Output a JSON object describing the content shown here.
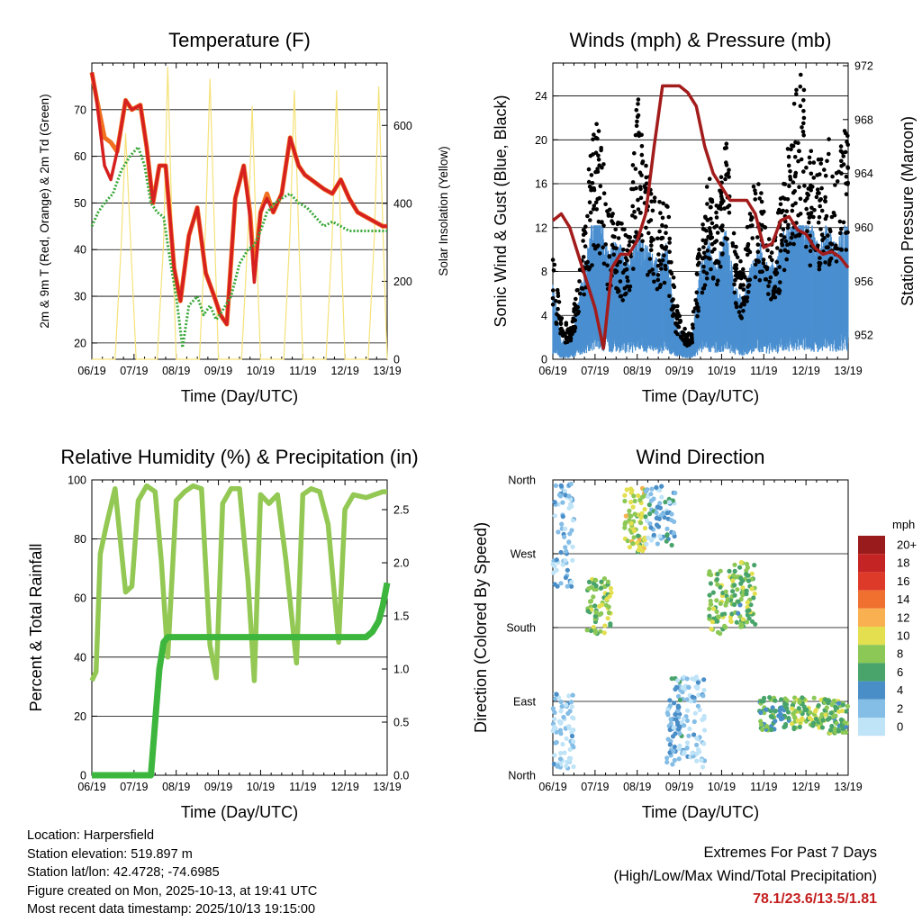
{
  "chart_data": [
    {
      "type": "line",
      "title": "Temperature (F)",
      "xlabel": "Time (Day/UTC)",
      "ylabel": "2m & 9m T (Red, Orange) & 2m Td (Green)",
      "ylabel_right": "Solar Insolation (Yellow)",
      "xticks": [
        "06/19",
        "07/19",
        "08/19",
        "09/19",
        "10/19",
        "11/19",
        "12/19",
        "13/19"
      ],
      "x_days": [
        6,
        7,
        8,
        9,
        10,
        11,
        12,
        13
      ],
      "xlim": [
        6,
        13
      ],
      "ylim": [
        16.5,
        80
      ],
      "yticks": [
        20,
        30,
        40,
        50,
        60,
        70
      ],
      "ylim_right": [
        0,
        760
      ],
      "yticks_right": [
        0,
        200,
        400,
        600
      ],
      "series": [
        {
          "name": "2m T",
          "color": "#d62020",
          "x": [
            6.0,
            6.1,
            6.3,
            6.45,
            6.6,
            6.8,
            6.95,
            7.15,
            7.3,
            7.45,
            7.6,
            7.75,
            7.95,
            8.1,
            8.3,
            8.5,
            8.7,
            8.9,
            9.05,
            9.2,
            9.4,
            9.6,
            9.75,
            9.85,
            10.0,
            10.15,
            10.3,
            10.5,
            10.7,
            10.9,
            11.05,
            11.2,
            11.35,
            11.5,
            11.7,
            11.9,
            12.1,
            12.3,
            12.5,
            12.7,
            12.9,
            13.0
          ],
          "values": [
            78,
            73,
            58,
            55,
            61,
            72,
            70,
            71,
            62,
            50,
            58,
            58,
            36,
            29,
            43,
            49,
            35,
            30,
            26,
            24,
            51,
            58,
            47,
            33,
            48,
            51,
            48,
            52,
            64,
            58,
            56,
            55,
            54,
            53,
            52,
            55,
            51,
            48,
            47,
            46,
            45,
            45
          ]
        },
        {
          "name": "9m T",
          "color": "#f07020",
          "x": [
            6.0,
            6.1,
            6.3,
            6.45,
            6.6,
            6.8,
            6.95,
            7.15,
            7.3,
            7.45,
            7.6,
            7.75,
            7.95,
            8.1,
            8.3,
            8.5,
            8.7,
            8.9,
            9.05,
            9.2,
            9.4,
            9.6,
            9.75,
            9.85,
            10.0,
            10.15,
            10.3,
            10.5,
            10.7,
            10.9,
            11.05,
            11.2,
            11.35,
            11.5,
            11.7,
            11.9,
            12.1,
            12.3,
            12.5,
            12.7,
            12.9,
            13.0
          ],
          "values": [
            78,
            73,
            64,
            63,
            61,
            72,
            70,
            71,
            62,
            50,
            58,
            58,
            36,
            29,
            43,
            49,
            35,
            30,
            26,
            24,
            51,
            58,
            48,
            35,
            48,
            52,
            48,
            52,
            64,
            58,
            56,
            55,
            54,
            53,
            52,
            55,
            51,
            48,
            47,
            46,
            45,
            45
          ]
        },
        {
          "name": "2m Td",
          "color": "#3aa83a",
          "x": [
            6.0,
            6.15,
            6.3,
            6.5,
            6.7,
            6.9,
            7.1,
            7.25,
            7.4,
            7.55,
            7.7,
            7.85,
            8.0,
            8.15,
            8.3,
            8.5,
            8.65,
            8.8,
            8.95,
            9.1,
            9.3,
            9.5,
            9.7,
            9.85,
            10.0,
            10.15,
            10.35,
            10.5,
            10.7,
            10.9,
            11.1,
            11.3,
            11.5,
            11.7,
            11.9,
            12.1,
            12.3,
            12.5,
            12.7,
            12.9,
            13.0
          ],
          "values": [
            45,
            48,
            50,
            52,
            57,
            60,
            62,
            58,
            50,
            48,
            47,
            38,
            30,
            19,
            28,
            30,
            26,
            28,
            25,
            27,
            30,
            37,
            40,
            41,
            44,
            48,
            50,
            51,
            52,
            50,
            49,
            47,
            45,
            46,
            45,
            44,
            44,
            44,
            44,
            44,
            44
          ]
        },
        {
          "name": "Solar Insolation",
          "color": "#f5e27a",
          "x": [
            6.0,
            6.55,
            6.7,
            6.8,
            6.92,
            7.05,
            7.55,
            7.7,
            7.8,
            7.9,
            8.0,
            8.55,
            8.7,
            8.8,
            8.9,
            9.0,
            9.55,
            9.7,
            9.8,
            9.9,
            10.0,
            10.55,
            10.7,
            10.8,
            10.9,
            11.0,
            11.55,
            11.7,
            11.8,
            11.9,
            12.0,
            12.55,
            12.7,
            12.8,
            12.9,
            13.0
          ],
          "values": [
            0,
            0,
            300,
            580,
            300,
            0,
            0,
            300,
            750,
            350,
            0,
            0,
            350,
            720,
            350,
            0,
            0,
            320,
            650,
            300,
            0,
            0,
            330,
            690,
            330,
            0,
            0,
            320,
            690,
            320,
            0,
            0,
            320,
            700,
            330,
            0
          ]
        }
      ]
    },
    {
      "type": "scatter",
      "title": "Winds (mph) & Pressure (mb)",
      "xlabel": "Time (Day/UTC)",
      "ylabel": "Sonic Wind & Gust (Blue, Black)",
      "ylabel_right": "Station Pressure (Maroon)",
      "xticks": [
        "06/19",
        "07/19",
        "08/19",
        "09/19",
        "10/19",
        "11/19",
        "12/19",
        "13/19"
      ],
      "x_days": [
        6,
        7,
        8,
        9,
        10,
        11,
        12,
        13
      ],
      "xlim": [
        6,
        13
      ],
      "ylim": [
        0,
        27
      ],
      "yticks": [
        0,
        4,
        8,
        12,
        16,
        20,
        24
      ],
      "ylim_right": [
        950.2,
        972.2
      ],
      "yticks_right": [
        952,
        956,
        960,
        964,
        968,
        972
      ],
      "series": [
        {
          "name": "Gust",
          "color": "#000000",
          "x": [
            6.0,
            6.2,
            6.4,
            6.6,
            6.9,
            7.1,
            7.3,
            7.6,
            7.8,
            8.0,
            8.2,
            8.5,
            8.7,
            8.9,
            9.1,
            9.3,
            9.5,
            9.7,
            9.9,
            10.1,
            10.3,
            10.5,
            10.7,
            10.9,
            11.1,
            11.3,
            11.5,
            11.7,
            11.9,
            12.1,
            12.3,
            12.5,
            12.7,
            12.9,
            13.0
          ],
          "values": [
            7,
            3,
            2,
            5,
            14,
            16,
            10,
            9,
            8,
            18,
            13,
            10,
            12,
            4,
            2,
            2,
            9,
            12,
            10,
            15,
            8,
            6,
            11,
            12,
            8,
            9,
            12,
            17,
            19,
            14,
            13,
            15,
            12,
            16,
            15
          ]
        },
        {
          "name": "Sonic Wind",
          "color": "#4a8fd0",
          "x": [
            6.0,
            6.2,
            6.4,
            6.6,
            6.9,
            7.1,
            7.3,
            7.6,
            7.8,
            8.0,
            8.2,
            8.5,
            8.7,
            8.9,
            9.1,
            9.3,
            9.5,
            9.7,
            9.9,
            10.1,
            10.3,
            10.5,
            10.7,
            10.9,
            11.1,
            11.3,
            11.5,
            11.7,
            11.9,
            12.1,
            12.3,
            12.5,
            12.7,
            12.9,
            13.0
          ],
          "values": [
            4,
            1,
            1,
            3,
            7,
            8,
            6,
            6,
            5,
            7,
            6,
            5,
            6,
            2,
            1,
            1,
            5,
            6,
            5,
            7,
            4,
            3,
            5,
            6,
            5,
            5,
            7,
            7,
            8,
            7,
            6,
            7,
            6,
            7,
            7
          ]
        },
        {
          "name": "Station Pressure",
          "color": "#a31c1c",
          "x": [
            6.0,
            6.2,
            6.4,
            6.6,
            6.8,
            7.0,
            7.2,
            7.4,
            7.6,
            7.8,
            8.0,
            8.2,
            8.4,
            8.6,
            8.8,
            9.0,
            9.2,
            9.4,
            9.6,
            9.8,
            10.0,
            10.2,
            10.4,
            10.6,
            10.8,
            11.0,
            11.2,
            11.4,
            11.6,
            11.8,
            12.0,
            12.2,
            12.4,
            12.6,
            12.8,
            13.0
          ],
          "values": [
            960.5,
            961,
            960,
            958,
            956,
            954,
            951,
            957,
            958,
            958,
            959,
            961,
            966,
            970.5,
            970.5,
            970.5,
            970,
            969,
            966,
            964,
            963,
            962,
            962,
            962,
            961,
            958.5,
            958.8,
            960.5,
            960.8,
            959.8,
            959.5,
            958.5,
            958,
            958.2,
            957.8,
            957
          ]
        }
      ]
    },
    {
      "type": "line",
      "title": "Relative Humidity (%) & Precipitation (in)",
      "xlabel": "Time (Day/UTC)",
      "ylabel": "Percent & Total Rainfall",
      "xticks": [
        "06/19",
        "07/19",
        "08/19",
        "09/19",
        "10/19",
        "11/19",
        "12/19",
        "13/19"
      ],
      "x_days": [
        6,
        7,
        8,
        9,
        10,
        11,
        12,
        13
      ],
      "xlim": [
        6,
        13
      ],
      "ylim": [
        0,
        100
      ],
      "yticks": [
        0,
        20,
        40,
        60,
        80,
        100
      ],
      "ylim_right": [
        0,
        2.78
      ],
      "yticks_right": [
        "0.0",
        "0.5",
        "1.0",
        "1.5",
        "2.0",
        "2.5"
      ],
      "series": [
        {
          "name": "Relative Humidity",
          "color": "#92c853",
          "x": [
            6.0,
            6.1,
            6.2,
            6.35,
            6.55,
            6.8,
            6.95,
            7.1,
            7.3,
            7.5,
            7.65,
            7.8,
            8.0,
            8.2,
            8.4,
            8.6,
            8.8,
            8.95,
            9.1,
            9.3,
            9.5,
            9.7,
            9.85,
            10.0,
            10.2,
            10.4,
            10.6,
            10.85,
            11.0,
            11.2,
            11.4,
            11.6,
            11.85,
            12.0,
            12.2,
            12.5,
            12.7,
            12.9,
            13.0
          ],
          "values": [
            32,
            35,
            75,
            85,
            97,
            62,
            64,
            93,
            98,
            96,
            72,
            40,
            93,
            96,
            98,
            97,
            44,
            33,
            92,
            97,
            97,
            66,
            32,
            95,
            92,
            95,
            73,
            38,
            95,
            97,
            96,
            85,
            45,
            90,
            95,
            94,
            95,
            96,
            96
          ]
        },
        {
          "name": "Total Rainfall",
          "color": "#3db63d",
          "x": [
            6.0,
            7.0,
            7.4,
            7.5,
            7.6,
            7.7,
            7.8,
            8.0,
            9.0,
            10.0,
            11.0,
            12.0,
            12.5,
            12.65,
            12.8,
            12.9,
            13.0
          ],
          "values": [
            0.0,
            0.0,
            0.0,
            0.5,
            1.0,
            1.25,
            1.3,
            1.3,
            1.3,
            1.3,
            1.3,
            1.3,
            1.3,
            1.35,
            1.45,
            1.6,
            1.81
          ]
        }
      ]
    },
    {
      "type": "scatter",
      "title": "Wind Direction",
      "xlabel": "Time (Day/UTC)",
      "ylabel": "Direction (Colored By Speed)",
      "xticks": [
        "06/19",
        "07/19",
        "08/19",
        "09/19",
        "10/19",
        "11/19",
        "12/19",
        "13/19"
      ],
      "x_days": [
        6,
        7,
        8,
        9,
        10,
        11,
        12,
        13
      ],
      "xlim": [
        6,
        13
      ],
      "ylim": [
        0,
        360
      ],
      "ytick_values": [
        0,
        90,
        180,
        270,
        360
      ],
      "yticks": [
        "North",
        "East",
        "South",
        "West",
        "North"
      ],
      "legend_title": "mph",
      "legend_position": "right",
      "legend_labels": [
        "20+",
        "18",
        "16",
        "14",
        "12",
        "10",
        "8",
        "6",
        "4",
        "2",
        "0"
      ],
      "legend_colors": [
        "#9a1b1b",
        "#c42424",
        "#de3a2a",
        "#f07030",
        "#f8b050",
        "#e3df4f",
        "#8cc856",
        "#48a46a",
        "#4a8ec8",
        "#84bde6",
        "#bfe3f7"
      ],
      "clusters": [
        {
          "x": [
            6.0,
            6.5
          ],
          "dir": [
            230,
            360
          ],
          "speed": 2
        },
        {
          "x": [
            6.0,
            6.5
          ],
          "dir": [
            5,
            100
          ],
          "speed": 1
        },
        {
          "x": [
            6.8,
            7.4
          ],
          "dir": [
            170,
            240
          ],
          "speed": 8
        },
        {
          "x": [
            7.7,
            8.2
          ],
          "dir": [
            270,
            350
          ],
          "speed": 9
        },
        {
          "x": [
            8.2,
            8.9
          ],
          "dir": [
            280,
            355
          ],
          "speed": 3
        },
        {
          "x": [
            8.7,
            9.1
          ],
          "dir": [
            5,
            120
          ],
          "speed": 3
        },
        {
          "x": [
            9.1,
            9.6
          ],
          "dir": [
            5,
            120
          ],
          "speed": 1
        },
        {
          "x": [
            9.7,
            10.3
          ],
          "dir": [
            170,
            250
          ],
          "speed": 8
        },
        {
          "x": [
            10.3,
            10.8
          ],
          "dir": [
            180,
            260
          ],
          "speed": 7
        },
        {
          "x": [
            10.9,
            11.6
          ],
          "dir": [
            55,
            95
          ],
          "speed": 6
        },
        {
          "x": [
            11.6,
            12.4
          ],
          "dir": [
            55,
            95
          ],
          "speed": 8
        },
        {
          "x": [
            12.4,
            13.0
          ],
          "dir": [
            50,
            95
          ],
          "speed": 7
        }
      ]
    }
  ],
  "station": {
    "location": "Location: Harpersfield",
    "elevation": "Station elevation: 519.897 m",
    "latlon": "Station lat/lon: 42.4728; -74.6985",
    "created": "Figure created on Mon, 2025-10-13, at 19:41 UTC",
    "timestamp": "Most recent data timestamp: 2025/10/13 19:15:00"
  },
  "extremes": {
    "title": "Extremes For Past 7 Days",
    "subtitle": "(High/Low/Max Wind/Total Precipitation)",
    "values": "78.1/23.6/13.5/1.81"
  }
}
